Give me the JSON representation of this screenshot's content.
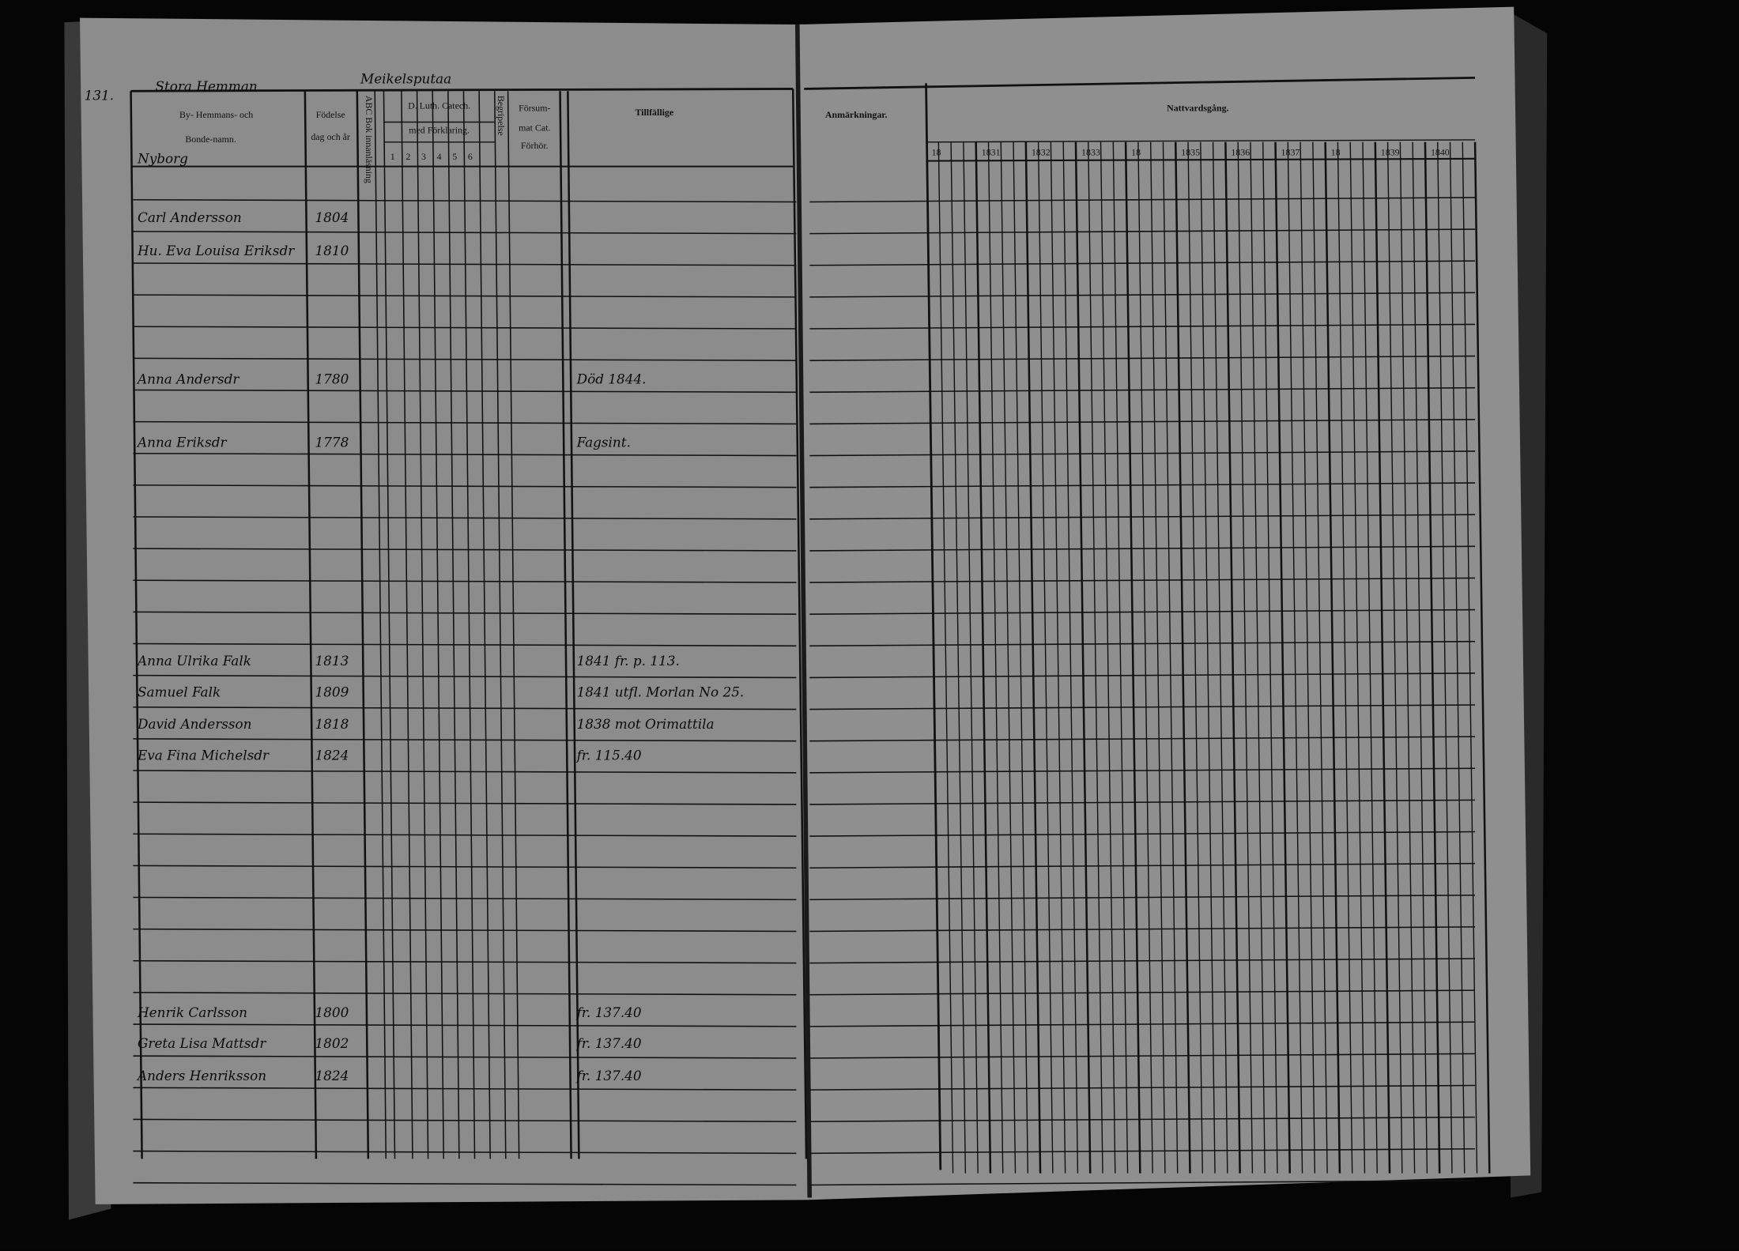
{
  "header": {
    "page_number": "131.",
    "place_label": "Stora Hemman",
    "place_name": "Meikelsputaa"
  },
  "columns": {
    "by_hemmans": "By- Hemmans- och",
    "bonde_namn": "Bonde-namn.",
    "fodelse": "Födelse",
    "fodelse_sub": "dag och år",
    "abc_bok": "ABC Bok innanläsning",
    "catech": "D. Luth. Catech.",
    "catech_sub": "med Förklaring.",
    "catech_nums": [
      "1",
      "2",
      "3",
      "4",
      "5",
      "6"
    ],
    "begripelse": "Begripelse",
    "forsummat": "Försum-",
    "forsummat_2": "mat Cat.",
    "forsummat_3": "Förhör.",
    "tillfallige": "Tillfällige",
    "anmarkningar": "Anmärkningar.",
    "nattvardsgang": "Nattvardsgång.",
    "years": [
      "18",
      "1831",
      "1832",
      "1833",
      "18",
      "1835",
      "1836",
      "1837",
      "18",
      "1839",
      "1840"
    ]
  },
  "entries": [
    {
      "name": "Nyborg",
      "born": "",
      "note": ""
    },
    {
      "name": "Carl Andersson",
      "born": "1804",
      "note": ""
    },
    {
      "name": "Hu. Eva Louisa Eriksdr",
      "born": "1810",
      "note": ""
    },
    {
      "name": "Anna Andersdr",
      "born": "1780",
      "note": "Död 1844."
    },
    {
      "name": "Anna Eriksdr",
      "born": "1778",
      "note": "Fagsint."
    },
    {
      "name": "Anna Ulrika Falk",
      "born": "1813",
      "note": "1841 fr. p. 113."
    },
    {
      "name": "Samuel Falk",
      "born": "1809",
      "note": "1841 utfl. Morlan No 25."
    },
    {
      "name": "David Andersson",
      "born": "1818",
      "note": "1838 mot Orimattila"
    },
    {
      "name": "Eva Fina Michelsdr",
      "born": "1824",
      "note": "fr. 115.40"
    },
    {
      "name": "Henrik Carlsson",
      "born": "1800",
      "note": "fr. 137.40"
    },
    {
      "name": "Greta Lisa Mattsdr",
      "born": "1802",
      "note": "fr. 137.40"
    },
    {
      "name": "Anders Henriksson",
      "born": "1824",
      "note": "fr. 137.40"
    }
  ]
}
